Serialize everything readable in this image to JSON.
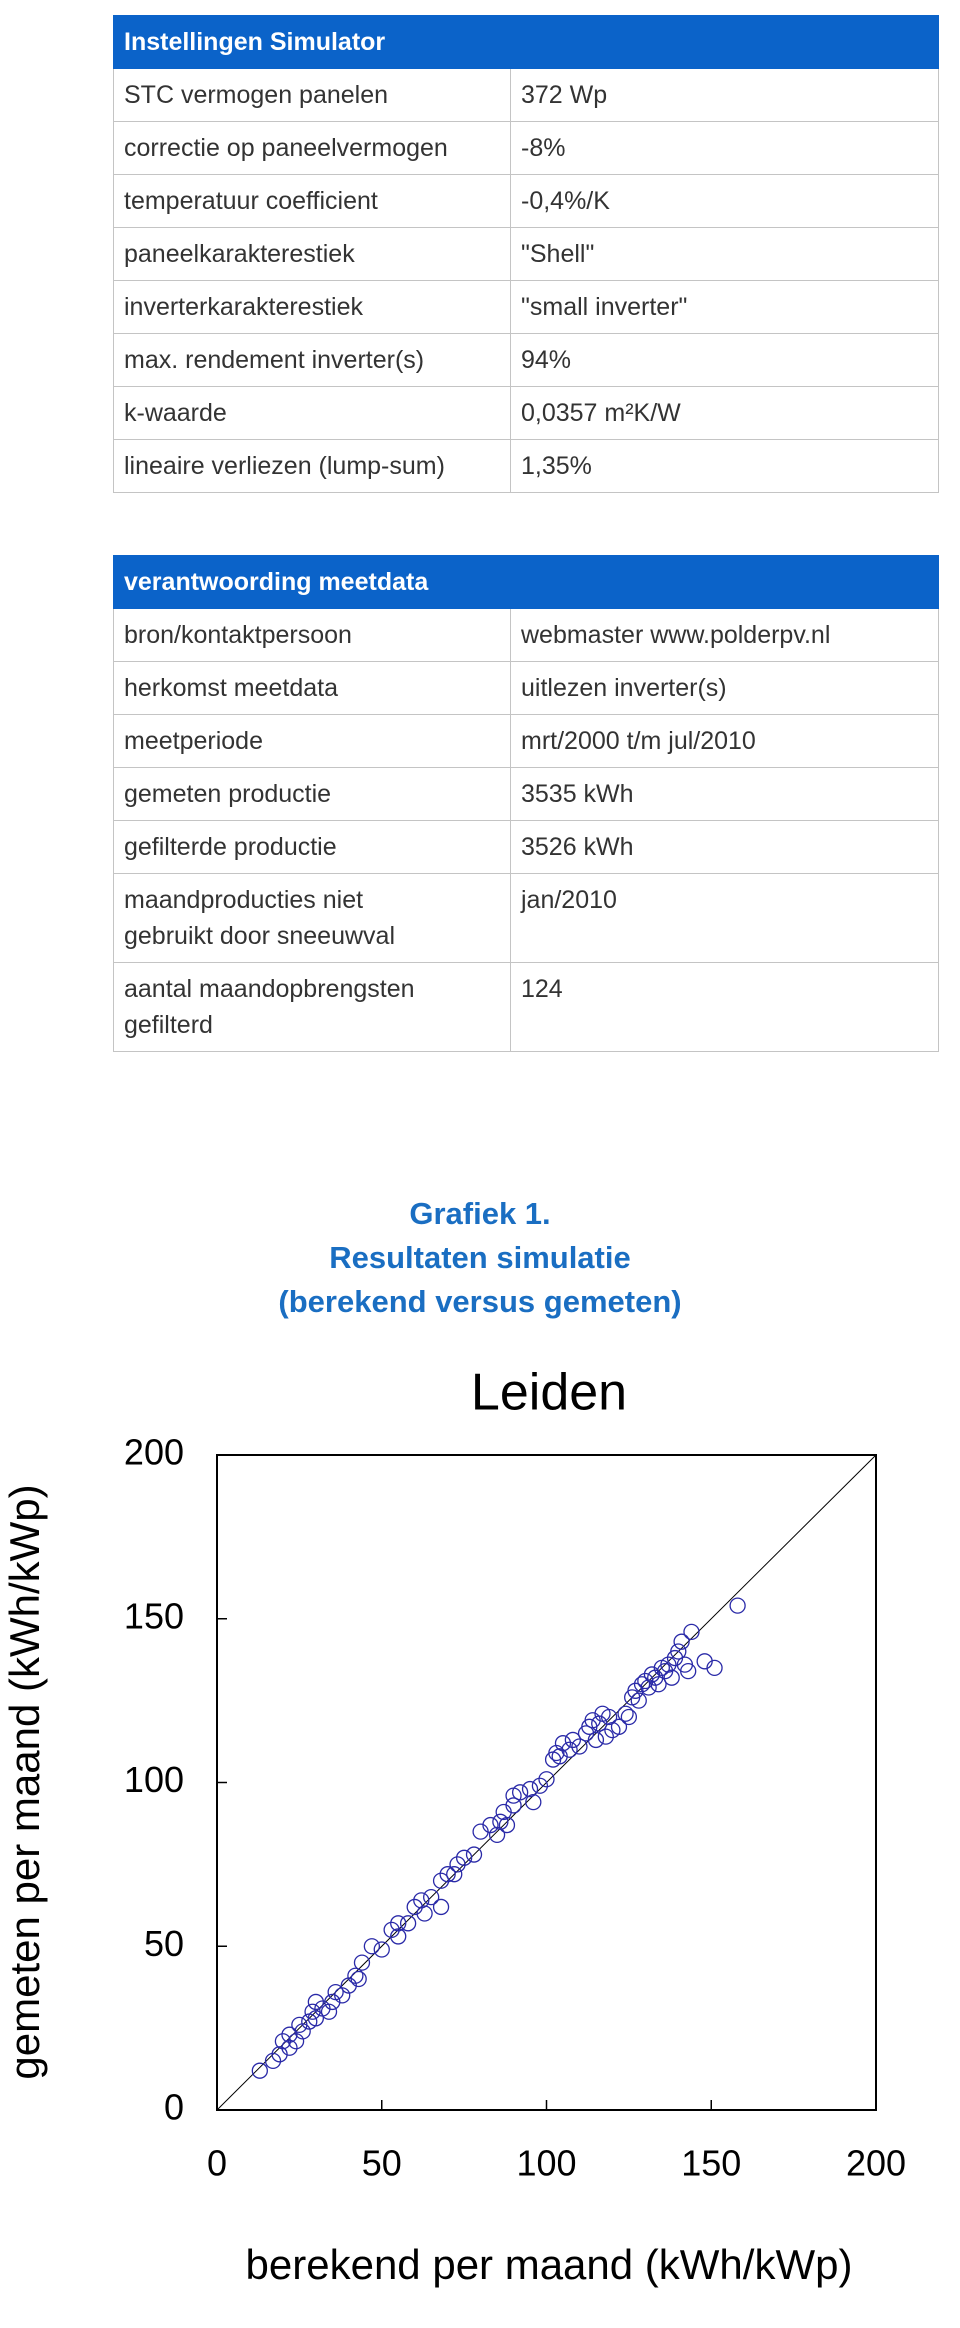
{
  "tables": [
    {
      "header": [
        "Instellingen Simulator"
      ],
      "rows": [
        [
          "STC vermogen panelen",
          "372 Wp"
        ],
        [
          "correctie op paneelvermogen",
          "-8%"
        ],
        [
          "temperatuur coefficient",
          "-0,4%/K"
        ],
        [
          "paneelkarakterestiek",
          "\"Shell\""
        ],
        [
          "inverterkarakterestiek",
          "\"small inverter\""
        ],
        [
          "max. rendement inverter(s)",
          "94%"
        ],
        [
          "k-waarde",
          "0,0357 m²K/W"
        ],
        [
          "lineaire verliezen (lump-sum)",
          "1,35%"
        ]
      ]
    },
    {
      "header": [
        "verantwoording meetdata"
      ],
      "rows": [
        [
          "bron/kontaktpersoon",
          "webmaster www.polderpv.nl"
        ],
        [
          "herkomst meetdata",
          "uitlezen inverter(s)"
        ],
        [
          "meetperiode",
          "mrt/2000 t/m jul/2010"
        ],
        [
          "gemeten productie",
          "3535 kWh"
        ],
        [
          "gefilterde productie",
          "3526 kWh"
        ],
        [
          "maandproducties niet\ngebruikt door sneeuwval",
          "jan/2010"
        ],
        [
          "aantal maandopbrengsten\ngefilterd",
          "124"
        ]
      ]
    }
  ],
  "caption": [
    "Grafiek 1.",
    "Resultaten simulatie",
    "(berekend versus gemeten)"
  ],
  "chart_data": {
    "type": "scatter",
    "title": "Leiden",
    "x_label": "berekend per maand (kWh/kWp)",
    "y_label": "gemeten per maand (kWh/kWp)",
    "color": "#2a2aa8",
    "x": [
      13,
      17,
      19,
      20,
      22,
      22,
      24,
      25,
      26,
      28,
      29,
      30,
      30,
      32,
      34,
      35,
      36,
      38,
      40,
      42,
      43,
      44,
      47,
      50,
      53,
      55,
      55,
      58,
      60,
      62,
      63,
      65,
      68,
      68,
      70,
      72,
      73,
      75,
      78,
      80,
      83,
      85,
      86,
      87,
      88,
      90,
      90,
      92,
      95,
      96,
      98,
      100,
      102,
      103,
      104,
      105,
      107,
      108,
      110,
      112,
      113,
      114,
      115,
      116,
      117,
      118,
      119,
      120,
      122,
      124,
      125,
      126,
      127,
      128,
      129,
      130,
      131,
      132,
      133,
      134,
      135,
      136,
      137,
      138,
      139,
      140,
      141,
      142,
      143,
      144,
      148,
      151,
      158
    ],
    "values": [
      12,
      15,
      17,
      21,
      19,
      23,
      21,
      26,
      24,
      27,
      30,
      28,
      33,
      31,
      30,
      33,
      36,
      35,
      38,
      41,
      40,
      45,
      50,
      49,
      55,
      53,
      57,
      57,
      62,
      64,
      60,
      65,
      62,
      70,
      72,
      72,
      75,
      77,
      78,
      85,
      87,
      84,
      88,
      91,
      87,
      93,
      96,
      97,
      98,
      94,
      99,
      101,
      107,
      109,
      108,
      112,
      110,
      113,
      111,
      115,
      117,
      119,
      113,
      118,
      121,
      114,
      120,
      116,
      117,
      121,
      120,
      126,
      128,
      125,
      130,
      131,
      129,
      133,
      132,
      130,
      135,
      134,
      136,
      132,
      138,
      140,
      143,
      136,
      134,
      146,
      137,
      135,
      154
    ],
    "xlim": [
      0,
      200
    ],
    "ylim": [
      0,
      200
    ],
    "xticks": [
      0,
      50,
      100,
      150,
      200
    ],
    "yticks": [
      0,
      50,
      100,
      150,
      200
    ]
  }
}
